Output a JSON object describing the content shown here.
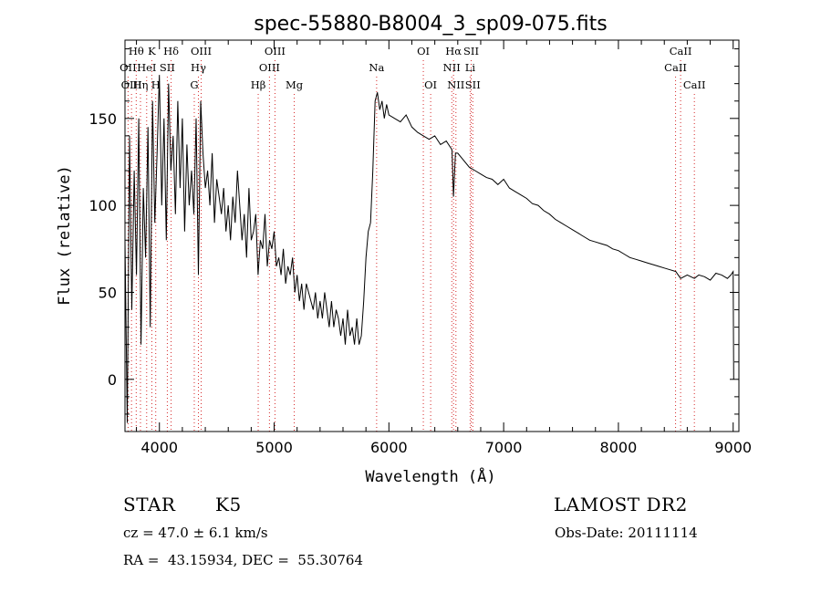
{
  "chart_data": {
    "type": "line",
    "title": "spec-55880-B8004_3_sp09-075.fits",
    "xlabel": "Wavelength (Å)",
    "ylabel": "Flux (relative)",
    "xlim": [
      3700,
      9050
    ],
    "ylim": [
      -30,
      195
    ],
    "xticks": [
      4000,
      5000,
      6000,
      7000,
      8000,
      9000
    ],
    "yticks": [
      0,
      50,
      100,
      150
    ],
    "grid": false,
    "legend": "none",
    "series": [
      {
        "x": [
          3700,
          3720,
          3740,
          3760,
          3780,
          3800,
          3820,
          3840,
          3860,
          3880,
          3900,
          3920,
          3940,
          3960,
          3980,
          4000,
          4020,
          4040,
          4060,
          4080,
          4100,
          4120,
          4140,
          4160,
          4180,
          4200,
          4220,
          4240,
          4260,
          4280,
          4300,
          4320,
          4340,
          4360,
          4380,
          4400,
          4420,
          4440,
          4460,
          4480,
          4500,
          4520,
          4540,
          4560,
          4580,
          4600,
          4620,
          4640,
          4660,
          4680,
          4700,
          4720,
          4740,
          4760,
          4780,
          4800,
          4820,
          4840,
          4860,
          4880,
          4900,
          4920,
          4940,
          4960,
          4980,
          5000,
          5020,
          5040,
          5060,
          5080,
          5100,
          5120,
          5140,
          5160,
          5180,
          5200,
          5220,
          5240,
          5260,
          5280,
          5300,
          5320,
          5340,
          5360,
          5380,
          5400,
          5420,
          5440,
          5460,
          5480,
          5500,
          5520,
          5540,
          5560,
          5580,
          5600,
          5620,
          5640,
          5660,
          5680,
          5700,
          5720,
          5740,
          5760,
          5780,
          5800,
          5820,
          5840,
          5860,
          5880,
          5900,
          5920,
          5940,
          5960,
          5980,
          6000,
          6050,
          6100,
          6150,
          6200,
          6250,
          6300,
          6350,
          6400,
          6450,
          6500,
          6550,
          6563,
          6580,
          6600,
          6650,
          6700,
          6750,
          6800,
          6850,
          6900,
          6950,
          7000,
          7050,
          7100,
          7150,
          7200,
          7250,
          7300,
          7350,
          7400,
          7450,
          7500,
          7550,
          7600,
          7650,
          7700,
          7750,
          7800,
          7850,
          7900,
          7950,
          8000,
          8050,
          8100,
          8150,
          8200,
          8250,
          8300,
          8350,
          8400,
          8450,
          8500,
          8542,
          8600,
          8662,
          8700,
          8750,
          8800,
          8850,
          8900,
          8950,
          8980,
          9000,
          9005
        ],
        "y": [
          80,
          -25,
          140,
          40,
          120,
          60,
          150,
          20,
          110,
          70,
          145,
          30,
          160,
          90,
          130,
          175,
          100,
          150,
          80,
          170,
          120,
          140,
          95,
          160,
          110,
          150,
          85,
          135,
          100,
          120,
          95,
          150,
          60,
          160,
          130,
          110,
          120,
          100,
          130,
          90,
          115,
          105,
          95,
          110,
          85,
          100,
          80,
          105,
          90,
          120,
          100,
          80,
          95,
          70,
          110,
          80,
          85,
          95,
          60,
          80,
          75,
          95,
          65,
          80,
          75,
          85,
          65,
          70,
          60,
          75,
          55,
          65,
          60,
          70,
          50,
          60,
          45,
          55,
          40,
          55,
          50,
          45,
          40,
          50,
          35,
          45,
          35,
          50,
          40,
          30,
          45,
          30,
          40,
          35,
          25,
          35,
          20,
          40,
          25,
          30,
          20,
          35,
          20,
          25,
          45,
          70,
          85,
          90,
          120,
          160,
          165,
          155,
          160,
          150,
          158,
          152,
          150,
          148,
          152,
          145,
          142,
          140,
          138,
          140,
          135,
          137,
          132,
          105,
          130,
          130,
          126,
          122,
          120,
          118,
          116,
          115,
          112,
          115,
          110,
          108,
          106,
          104,
          101,
          100,
          97,
          95,
          92,
          90,
          88,
          86,
          84,
          82,
          80,
          79,
          78,
          77,
          75,
          74,
          72,
          70,
          69,
          68,
          67,
          66,
          65,
          64,
          63,
          62,
          58,
          60,
          58,
          60,
          59,
          57,
          61,
          60,
          58,
          60,
          62,
          0
        ]
      }
    ],
    "line_marks": [
      {
        "label": "Hθ",
        "x": 3798,
        "row": 1
      },
      {
        "label": "K",
        "x": 3934,
        "row": 1
      },
      {
        "label": "Hδ",
        "x": 4102,
        "row": 1
      },
      {
        "label": "OIII",
        "x": 4364,
        "row": 1
      },
      {
        "label": "OIII",
        "x": 5007,
        "row": 1
      },
      {
        "label": "OI",
        "x": 6300,
        "row": 1
      },
      {
        "label": "Hα",
        "x": 6563,
        "row": 1
      },
      {
        "label": "SII",
        "x": 6717,
        "row": 1
      },
      {
        "label": "CaII",
        "x": 8542,
        "row": 1
      },
      {
        "label": "OII",
        "x": 3727,
        "row": 2
      },
      {
        "label": "HeI",
        "x": 3889,
        "row": 2
      },
      {
        "label": "SII",
        "x": 4069,
        "row": 2
      },
      {
        "label": "Hγ",
        "x": 4340,
        "row": 2
      },
      {
        "label": "OIII",
        "x": 4959,
        "row": 2
      },
      {
        "label": "Na",
        "x": 5893,
        "row": 2
      },
      {
        "label": "NII",
        "x": 6548,
        "row": 2
      },
      {
        "label": "Li",
        "x": 6708,
        "row": 2
      },
      {
        "label": "CaII",
        "x": 8498,
        "row": 2
      },
      {
        "label": "OIII",
        "x": 3757,
        "row": 3
      },
      {
        "label": "Hη",
        "x": 3835,
        "row": 3
      },
      {
        "label": "H",
        "x": 3968,
        "row": 3
      },
      {
        "label": "G",
        "x": 4304,
        "row": 3
      },
      {
        "label": "Hβ",
        "x": 4861,
        "row": 3
      },
      {
        "label": "Mg",
        "x": 5175,
        "row": 3
      },
      {
        "label": "OI",
        "x": 6364,
        "row": 3
      },
      {
        "label": "NII",
        "x": 6584,
        "row": 3
      },
      {
        "label": "SII",
        "x": 6731,
        "row": 3
      },
      {
        "label": "CaII",
        "x": 8662,
        "row": 3
      }
    ]
  },
  "info": {
    "object_type": "STAR",
    "subclass": "K5",
    "survey": "LAMOST DR2",
    "cz": "cz = 47.0 ± 6.1 km/s",
    "obs_date": "Obs-Date: 20111114",
    "coords": "RA =  43.15934, DEC =  55.30764"
  }
}
